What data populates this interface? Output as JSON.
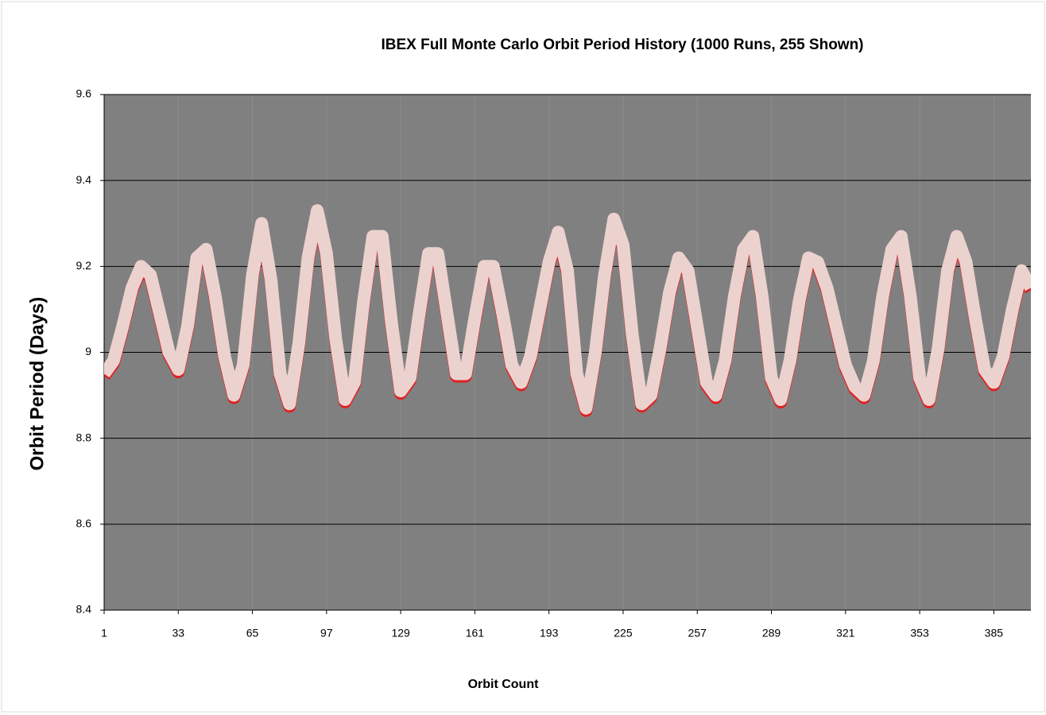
{
  "chart_data": {
    "type": "line",
    "title": "IBEX Full Monte Carlo Orbit Period History (1000 Runs, 255 Shown)",
    "ylabel": "Orbit Period (Days)",
    "xlabel": "Orbit Count",
    "x": [
      1,
      5,
      9,
      13,
      17,
      21,
      25,
      29,
      33,
      37,
      41,
      45,
      49,
      53,
      57,
      61,
      65,
      69,
      73,
      77,
      81,
      85,
      89,
      93,
      97,
      101,
      105,
      109,
      113,
      117,
      121,
      125,
      129,
      133,
      137,
      141,
      145,
      149,
      153,
      157,
      161,
      165,
      169,
      173,
      177,
      181,
      185,
      189,
      193,
      197,
      201,
      205,
      209,
      213,
      217,
      221,
      225,
      229,
      233,
      237,
      241,
      245,
      249,
      253,
      257,
      261,
      265,
      269,
      273,
      277,
      281,
      285,
      289,
      293,
      297,
      301,
      305,
      309,
      313,
      317,
      321,
      325,
      329,
      333,
      337,
      341,
      345,
      349,
      353,
      357,
      361,
      365,
      369,
      373,
      377,
      381,
      385,
      389,
      393,
      397,
      401
    ],
    "values": [
      8.95,
      8.98,
      9.06,
      9.15,
      9.2,
      9.18,
      9.09,
      9.0,
      8.96,
      9.06,
      9.22,
      9.24,
      9.13,
      8.99,
      8.9,
      8.97,
      9.18,
      9.3,
      9.17,
      8.95,
      8.88,
      9.02,
      9.22,
      9.33,
      9.23,
      9.03,
      8.89,
      8.93,
      9.12,
      9.27,
      9.27,
      9.07,
      8.91,
      8.94,
      9.09,
      9.23,
      9.23,
      9.09,
      8.95,
      8.95,
      9.08,
      9.2,
      9.2,
      9.09,
      8.97,
      8.93,
      8.99,
      9.1,
      9.21,
      9.28,
      9.19,
      8.95,
      8.87,
      9.0,
      9.18,
      9.31,
      9.25,
      9.04,
      8.88,
      8.9,
      9.01,
      9.14,
      9.22,
      9.19,
      9.06,
      8.93,
      8.9,
      8.98,
      9.13,
      9.24,
      9.27,
      9.13,
      8.94,
      8.89,
      8.98,
      9.12,
      9.22,
      9.21,
      9.15,
      9.06,
      8.97,
      8.92,
      8.9,
      8.98,
      9.13,
      9.24,
      9.27,
      9.13,
      8.94,
      8.89,
      9.01,
      9.19,
      9.27,
      9.21,
      9.08,
      8.96,
      8.93,
      8.99,
      9.1,
      9.19,
      9.15
    ],
    "color": "#ecd2cf",
    "xlim": [
      1,
      401
    ],
    "xticks": [
      1,
      33,
      65,
      97,
      129,
      161,
      193,
      225,
      257,
      289,
      321,
      353,
      385
    ],
    "ylim": [
      8.4,
      9.6
    ],
    "yticks": [
      8.4,
      8.6,
      8.8,
      9,
      9.2,
      9.4,
      9.6
    ],
    "grid": true,
    "plot_background": "#808080"
  }
}
